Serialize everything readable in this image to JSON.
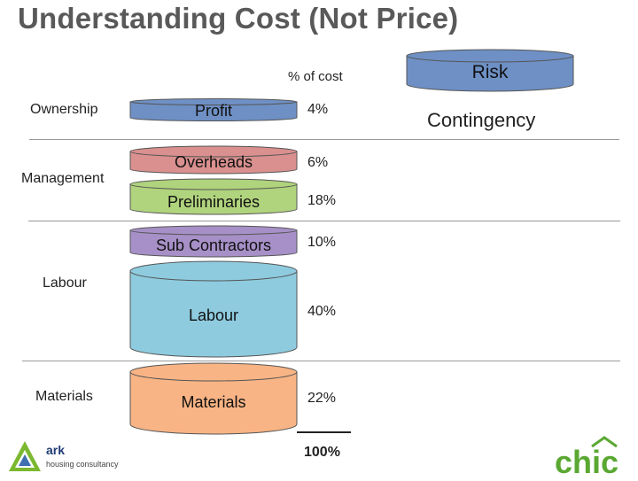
{
  "slide": {
    "title": "Understanding Cost (Not Price)",
    "column_header": "% of cost",
    "total": "100%"
  },
  "categories": {
    "ownership": "Ownership",
    "management": "Management",
    "labour": "Labour",
    "materials": "Materials"
  },
  "cost_items": [
    {
      "label": "Profit",
      "percent": "4%",
      "fill": "#6e90c5"
    },
    {
      "label": "Overheads",
      "percent": "6%",
      "fill": "#d9908e"
    },
    {
      "label": "Preliminaries",
      "percent": "18%",
      "fill": "#b0d37d"
    },
    {
      "label": "Sub Contractors",
      "percent": "10%",
      "fill": "#a790c7"
    },
    {
      "label": "Labour",
      "percent": "40%",
      "fill": "#8ecbdf"
    },
    {
      "label": "Materials",
      "percent": "22%",
      "fill": "#f8b485"
    }
  ],
  "risk": {
    "label": "Risk",
    "contingency": "Contingency",
    "fill": "#6e90c5"
  },
  "logos": {
    "ark_name": "ark",
    "ark_tagline": "housing consultancy",
    "chic": "chic"
  }
}
